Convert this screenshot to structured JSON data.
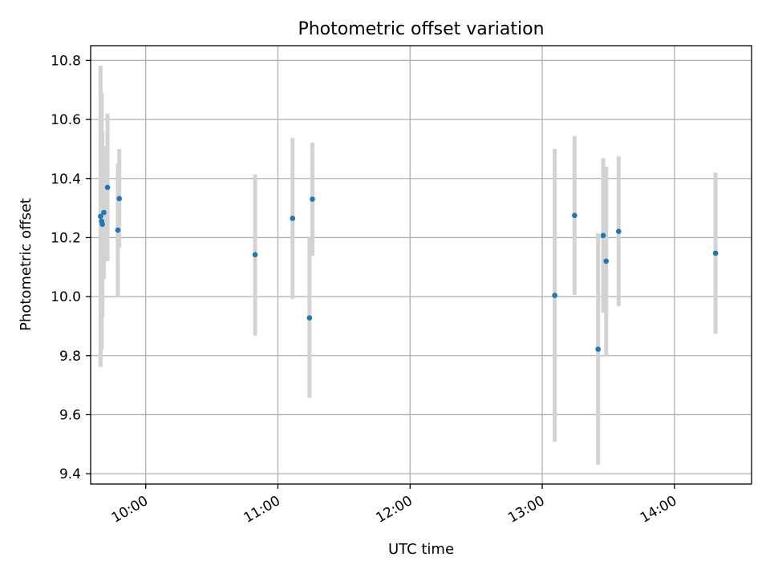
{
  "chart_data": {
    "type": "scatter",
    "title": "Photometric offset variation",
    "xlabel": "UTC time",
    "ylabel": "Photometric offset",
    "x_axis_type": "time",
    "xlim": [
      "09:35",
      "14:35"
    ],
    "ylim": [
      9.365,
      10.85
    ],
    "xticks": [
      "10:00",
      "11:00",
      "12:00",
      "13:00",
      "14:00"
    ],
    "yticks": [
      9.4,
      9.6,
      9.8,
      10.0,
      10.2,
      10.4,
      10.6,
      10.8
    ],
    "ytick_labels": [
      "9.4",
      "9.6",
      "9.8",
      "10.0",
      "10.2",
      "10.4",
      "10.6",
      "10.8"
    ],
    "grid": true,
    "marker_color": "#1f77b4",
    "errorbar_color": "#d3d3d3",
    "points": [
      {
        "x": "09:39:30",
        "y": 10.272,
        "ymin": 9.762,
        "ymax": 10.782
      },
      {
        "x": "09:40:00",
        "y": 10.255,
        "ymin": 9.82,
        "ymax": 10.69
      },
      {
        "x": "09:40:20",
        "y": 10.245,
        "ymin": 9.93,
        "ymax": 10.56
      },
      {
        "x": "09:41:00",
        "y": 10.285,
        "ymin": 10.06,
        "ymax": 10.51
      },
      {
        "x": "09:42:40",
        "y": 10.37,
        "ymin": 10.12,
        "ymax": 10.62
      },
      {
        "x": "09:47:20",
        "y": 10.225,
        "ymin": 10.0,
        "ymax": 10.45
      },
      {
        "x": "09:48:00",
        "y": 10.332,
        "ymin": 10.165,
        "ymax": 10.5
      },
      {
        "x": "10:49:40",
        "y": 10.142,
        "ymin": 9.868,
        "ymax": 10.414
      },
      {
        "x": "11:06:40",
        "y": 10.265,
        "ymin": 9.992,
        "ymax": 10.537
      },
      {
        "x": "11:14:20",
        "y": 9.928,
        "ymin": 9.657,
        "ymax": 10.2
      },
      {
        "x": "11:15:40",
        "y": 10.33,
        "ymin": 10.138,
        "ymax": 10.521
      },
      {
        "x": "13:05:40",
        "y": 10.004,
        "ymin": 9.508,
        "ymax": 10.5
      },
      {
        "x": "13:14:40",
        "y": 10.275,
        "ymin": 10.006,
        "ymax": 10.544
      },
      {
        "x": "13:25:20",
        "y": 9.822,
        "ymin": 9.43,
        "ymax": 10.214
      },
      {
        "x": "13:27:40",
        "y": 10.207,
        "ymin": 9.945,
        "ymax": 10.469
      },
      {
        "x": "13:29:00",
        "y": 10.12,
        "ymin": 9.8,
        "ymax": 10.44
      },
      {
        "x": "13:34:40",
        "y": 10.221,
        "ymin": 9.968,
        "ymax": 10.475
      },
      {
        "x": "14:18:40",
        "y": 10.147,
        "ymin": 9.874,
        "ymax": 10.42
      }
    ]
  }
}
